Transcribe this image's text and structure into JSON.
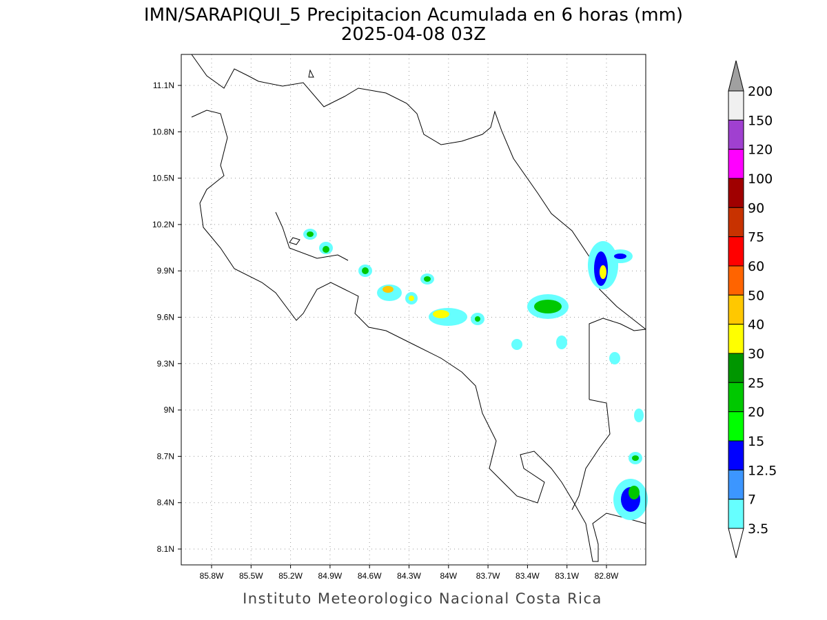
{
  "title": "IMN/SARAPIQUI_5 Precipitacion Acumulada en 6 horas (mm)",
  "subtitle": "2025-04-08 03Z",
  "lon_labels": [
    "85.8W",
    "85.5W",
    "85.2W",
    "84.9W",
    "84.6W",
    "84.3W",
    "84W",
    "83.7W",
    "83.4W",
    "83.1W",
    "82.8W"
  ],
  "lat_labels": [
    "11.1N",
    "10.8N",
    "10.5N",
    "10.2N",
    "9.9N",
    "9.6N",
    "9.3N",
    "9N",
    "8.7N",
    "8.4N",
    "8.1N"
  ],
  "colorbar": {
    "labels": [
      "200",
      "150",
      "120",
      "100",
      "90",
      "75",
      "60",
      "50",
      "40",
      "30",
      "25",
      "20",
      "15",
      "12.5",
      "7",
      "3.5"
    ],
    "colors": [
      "#a0a0a0",
      "#f0f0f0",
      "#a040d0",
      "#ff00ff",
      "#a00000",
      "#c83200",
      "#ff0000",
      "#ff6400",
      "#ffc800",
      "#ffff00",
      "#009600",
      "#00c800",
      "#00ff00",
      "#0000ff",
      "#3c96ff",
      "#66ffff",
      "#ffffff"
    ]
  },
  "footer": "Instituto Meteorologico Nacional Costa Rica"
}
